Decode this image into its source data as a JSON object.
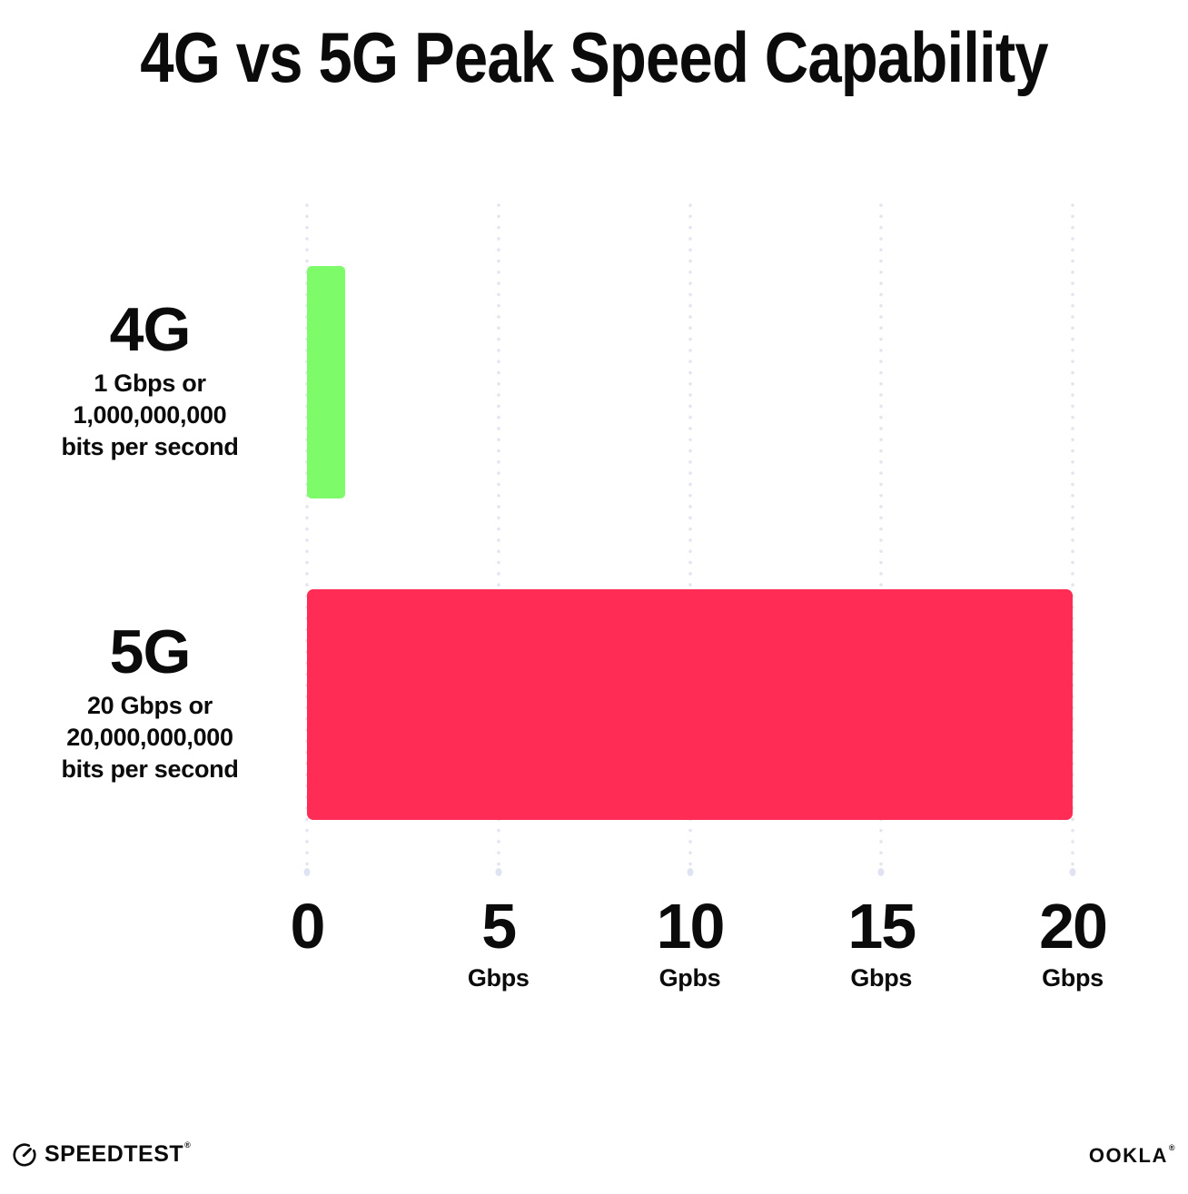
{
  "title": "4G vs 5G Peak Speed Capability",
  "chart_data": {
    "type": "bar",
    "orientation": "horizontal",
    "title": "4G vs 5G Peak Speed Capability",
    "xlim": [
      0,
      20
    ],
    "grid": "vertical-dotted",
    "legend": "none",
    "categories": [
      "4G",
      "5G"
    ],
    "values": [
      1,
      20
    ],
    "rows": [
      {
        "label": "4G",
        "value_gbps": 1,
        "sub_lines": [
          "1 Gbps or",
          "1,000,000,000",
          "bits per second"
        ],
        "color": "#7EFB69"
      },
      {
        "label": "5G",
        "value_gbps": 20,
        "sub_lines": [
          "20 Gbps or",
          "20,000,000,000",
          "bits per second"
        ],
        "color": "#FF2D55"
      }
    ],
    "x_ticks": [
      {
        "value": 0,
        "label": "0",
        "unit": ""
      },
      {
        "value": 5,
        "label": "5",
        "unit": "Gbps"
      },
      {
        "value": 10,
        "label": "10",
        "unit": "Gpbs"
      },
      {
        "value": 15,
        "label": "15",
        "unit": "Gbps"
      },
      {
        "value": 20,
        "label": "20",
        "unit": "Gbps"
      }
    ]
  },
  "footer": {
    "speedtest_label": "SPEEDTEST",
    "speedtest_trademark": "®",
    "ookla_label": "OOKLA",
    "ookla_trademark": "®"
  },
  "colors": {
    "bar_4g": "#7EFB69",
    "bar_5g": "#FF2D55",
    "gridline": "#E3E4EF",
    "text": "#0B0B0B",
    "background": "#FFFFFF"
  }
}
